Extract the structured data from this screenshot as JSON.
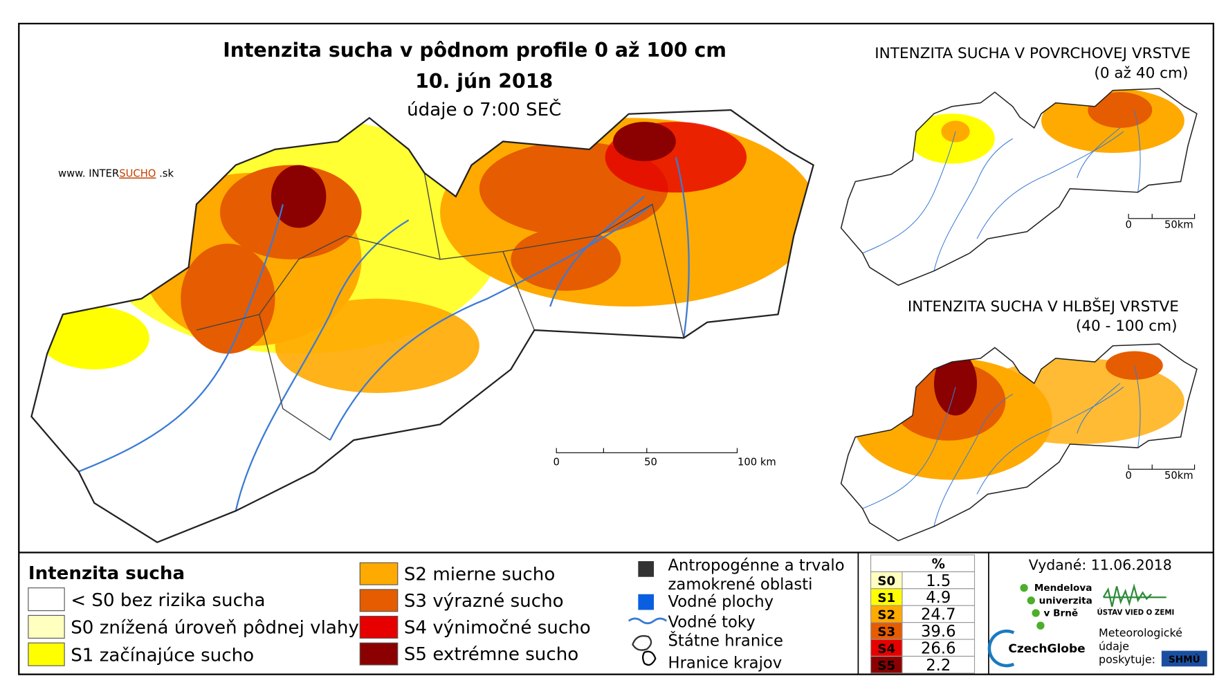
{
  "main_map": {
    "title": "Intenzita sucha v pôdnom profile 0 až 100 cm",
    "date": "10. jún 2018",
    "subtitle": "údaje o 7:00 SEČ",
    "website": {
      "prefix": "www. INTER",
      "highlight": "SUCHO",
      "suffix": " .sk"
    },
    "scale": [
      "0",
      "50",
      "100 km"
    ]
  },
  "inset_top": {
    "title": "INTENZITA SUCHA V POVRCHOVEJ VRSTVE",
    "subtitle": "(0 až 40 cm)",
    "scale": [
      "0",
      "50km"
    ]
  },
  "inset_bottom": {
    "title": "INTENZITA SUCHA V HLBŠEJ VRSTVE",
    "subtitle": "(40 - 100 cm)",
    "scale": [
      "0",
      "50km"
    ]
  },
  "legend": {
    "title": "Intenzita sucha",
    "classes": [
      {
        "label": "< S0 bez rizika sucha",
        "color": "#ffffff"
      },
      {
        "label": "S0 znížená úroveň pôdnej vlahy",
        "color": "#ffffc0"
      },
      {
        "label": "S1 začínajúce sucho",
        "color": "#ffff00"
      },
      {
        "label": "S2 mierne sucho",
        "color": "#ffaa00"
      },
      {
        "label": "S3 výrazné sucho",
        "color": "#e65c00"
      },
      {
        "label": "S4 výnimočné sucho",
        "color": "#e60000"
      },
      {
        "label": "S5 extrémne sucho",
        "color": "#8b0000"
      }
    ]
  },
  "symbols": [
    {
      "lines": [
        "Antropogénne a trvalo",
        "zamokrené oblasti"
      ]
    },
    {
      "lines": [
        "Vodné plochy"
      ]
    },
    {
      "lines": [
        "Vodné toky"
      ]
    },
    {
      "lines": [
        "Štátne hranice"
      ]
    },
    {
      "lines": [
        "Hranice krajov"
      ]
    }
  ],
  "table": {
    "header": "%",
    "rows": [
      {
        "code": "S0",
        "value": 1.5,
        "color": "#ffffc0"
      },
      {
        "code": "S1",
        "value": 4.9,
        "color": "#ffff00"
      },
      {
        "code": "S2",
        "value": 24.7,
        "color": "#ffaa00"
      },
      {
        "code": "S3",
        "value": 39.6,
        "color": "#e65c00"
      },
      {
        "code": "S4",
        "value": 26.6,
        "color": "#e60000"
      },
      {
        "code": "S5",
        "value": 2.2,
        "color": "#8b0000"
      }
    ]
  },
  "issued": "Vydané: 11.06.2018",
  "logos": {
    "mendel": [
      "Mendelova",
      "univerzita",
      "v Brně"
    ],
    "czechglobe": "CzechGlobe",
    "ustav": "ÚSTAV VIED O ZEMI",
    "meteo": [
      "Meteorologické",
      "údaje",
      "poskytuje:"
    ],
    "shmu": "SHMÚ"
  }
}
